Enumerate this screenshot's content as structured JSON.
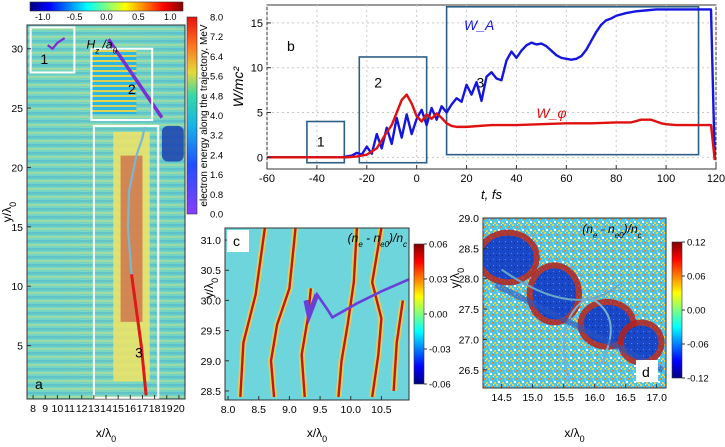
{
  "chart_data": [
    {
      "panel": "a",
      "type": "heatmap",
      "field_label": "H_z /a_0",
      "xlabel": "x/λ0",
      "ylabel": "y/λ0",
      "xlim": [
        7.5,
        20.5
      ],
      "ylim": [
        0.5,
        32
      ],
      "x_ticks": [
        8,
        9,
        10,
        11,
        12,
        13,
        14,
        15,
        16,
        17,
        18,
        19,
        20
      ],
      "y_ticks": [
        5,
        10,
        15,
        20,
        25,
        30
      ],
      "field_colorbar": {
        "ticks": [
          -1.0,
          -0.5,
          0.0,
          0.5,
          1.0
        ]
      },
      "energy_colorbar": {
        "label": "electron energy along the trajectory, MeV",
        "ticks": [
          8.0,
          7.2,
          6.4,
          5.6,
          4.8,
          4.0,
          3.2,
          2.4,
          1.6,
          0.8,
          0.0
        ]
      },
      "boxes": [
        {
          "label": "1",
          "x": [
            7.8,
            11.4
          ],
          "y": [
            28.0,
            31.8
          ]
        },
        {
          "label": "2",
          "x": [
            12.8,
            17.8
          ],
          "y": [
            24.0,
            30.0
          ]
        },
        {
          "label": "3",
          "x": [
            13.0,
            18.3
          ],
          "y": [
            0.6,
            23.5
          ]
        }
      ],
      "trajectory": {
        "x": [
          17.3,
          16.9,
          16.1,
          15.8,
          15.9,
          16.5,
          17.0,
          17.2
        ],
        "y": [
          0.8,
          5,
          11,
          15,
          18,
          21,
          22.5,
          23.5
        ]
      }
    },
    {
      "panel": "b",
      "type": "line",
      "xlabel": "t, fs",
      "ylabel": "W/mc²",
      "xlim": [
        -60,
        120
      ],
      "ylim": [
        -1.3,
        17
      ],
      "x_ticks": [
        -60,
        -40,
        -20,
        0,
        20,
        40,
        60,
        80,
        100,
        120
      ],
      "y_ticks": [
        0,
        5,
        10,
        15
      ],
      "grid": true,
      "series": [
        {
          "name": "W_A",
          "color": "#1515e0",
          "x": [
            -60,
            -30,
            -26,
            -24,
            -22,
            -20,
            -18,
            -16,
            -14,
            -12,
            -10,
            -8,
            -6,
            -4,
            -2,
            0,
            2,
            4,
            6,
            8,
            10,
            12,
            14,
            16,
            18,
            20,
            22,
            24,
            26,
            28,
            30,
            32,
            34,
            36,
            38,
            40,
            42,
            44,
            46,
            48,
            50,
            52,
            54,
            56,
            58,
            60,
            62,
            64,
            66,
            68,
            70,
            72,
            74,
            76,
            78,
            80,
            84,
            88,
            92,
            96,
            100,
            104,
            108,
            112,
            116,
            118,
            119.5
          ],
          "values": [
            0,
            0,
            0.2,
            0.5,
            0.3,
            1.2,
            0.4,
            2.6,
            1.0,
            3.3,
            1.5,
            4.4,
            2.2,
            4.8,
            2.6,
            4.3,
            5.3,
            3.6,
            5.5,
            4.2,
            5.7,
            5.0,
            5.9,
            6.6,
            6.2,
            8.1,
            7.0,
            8.4,
            6.3,
            9.0,
            9.5,
            8.8,
            8.6,
            10.8,
            11.8,
            11.1,
            11.9,
            12.5,
            12.8,
            12.6,
            12.7,
            12.4,
            11.9,
            11.4,
            11.1,
            11.0,
            10.9,
            11.0,
            11.3,
            12.0,
            13.0,
            14.0,
            14.8,
            15.3,
            15.5,
            15.8,
            16.1,
            16.3,
            16.4,
            16.5,
            16.5,
            16.5,
            16.5,
            16.5,
            16.5,
            16.5,
            -0.3
          ]
        },
        {
          "name": "W_φ",
          "color": "#e01010",
          "x": [
            -60,
            -28,
            -24,
            -20,
            -16,
            -12,
            -10,
            -8,
            -6,
            -4,
            -2,
            0,
            2,
            4,
            6,
            8,
            10,
            12,
            14,
            16,
            20,
            30,
            40,
            50,
            60,
            70,
            80,
            86,
            90,
            94,
            98,
            100,
            104,
            110,
            116,
            118,
            119.5
          ],
          "values": [
            0,
            0,
            0.1,
            0.3,
            1.0,
            2.8,
            3.6,
            5.0,
            6.4,
            7.0,
            6.0,
            4.6,
            4.0,
            4.8,
            4.3,
            4.9,
            4.4,
            3.8,
            3.5,
            3.4,
            3.4,
            3.6,
            3.6,
            3.7,
            3.8,
            3.8,
            3.9,
            3.9,
            4.2,
            4.2,
            3.8,
            3.7,
            3.6,
            3.6,
            3.6,
            3.6,
            -0.3
          ]
        }
      ],
      "boxes": [
        {
          "label": "1",
          "x": [
            -44,
            -29
          ],
          "y": [
            -0.6,
            4.0
          ]
        },
        {
          "label": "2",
          "x": [
            -23,
            4
          ],
          "y": [
            -0.6,
            11.2
          ]
        },
        {
          "label": "3",
          "x": [
            12,
            113
          ],
          "y": [
            0.3,
            16.8
          ]
        }
      ]
    },
    {
      "panel": "c",
      "type": "heatmap",
      "field_label": "(n_e - n_e0)/n_c",
      "xlabel": "x/λ0",
      "ylabel": "y/λ0",
      "xlim": [
        7.95,
        10.95
      ],
      "ylim": [
        28.35,
        31.2
      ],
      "x_ticks": [
        8.0,
        8.5,
        9.0,
        9.5,
        10.0,
        10.5
      ],
      "y_ticks": [
        28.5,
        29.0,
        29.5,
        30.0,
        30.5,
        31.0
      ],
      "colorbar": {
        "ticks": [
          0.06,
          0.03,
          0.0,
          -0.03,
          -0.06
        ]
      }
    },
    {
      "panel": "d",
      "type": "heatmap",
      "field_label": "(n_e - n_e0)/n_c",
      "xlabel": "x/λ0",
      "ylabel": "y/λ0",
      "xlim": [
        14.2,
        17.15
      ],
      "ylim": [
        26.2,
        29.0
      ],
      "x_ticks": [
        14.5,
        15.0,
        15.5,
        16.0,
        16.5,
        17.0
      ],
      "y_ticks": [
        26.5,
        27.0,
        27.5,
        28.0,
        28.5,
        29.0
      ],
      "colorbar": {
        "ticks": [
          0.12,
          0.06,
          0.0,
          -0.06,
          -0.12
        ]
      }
    }
  ]
}
